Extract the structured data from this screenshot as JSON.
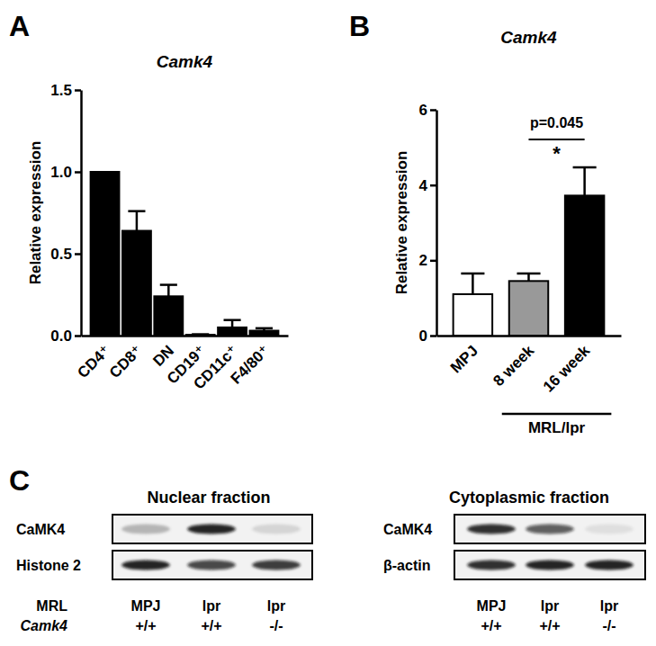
{
  "chart_data": [
    {
      "type": "bar",
      "panel": "A",
      "title": "Camk4",
      "y_label": "Relative expression",
      "categories": [
        "CD4⁺",
        "CD8⁺",
        "DN",
        "CD19⁺",
        "CD11c⁺",
        "F4/80⁺"
      ],
      "values": [
        1.0,
        0.64,
        0.24,
        0.005,
        0.05,
        0.03
      ],
      "errors": [
        null,
        0.12,
        0.07,
        0.003,
        0.045,
        0.015
      ],
      "color": "#000000",
      "ylim": [
        0,
        1.5
      ],
      "yticks": [
        {
          "value": 0,
          "label": "0.0"
        },
        0.5,
        {
          "value": 1,
          "label": "1.0"
        },
        1.5
      ]
    },
    {
      "type": "bar",
      "panel": "B",
      "title": "Camk4",
      "y_label": "Relative expression",
      "categories": [
        "MPJ",
        "8 week",
        "16 week"
      ],
      "values": [
        1.1,
        1.45,
        3.72
      ],
      "errors": [
        0.55,
        0.2,
        0.75
      ],
      "colors": [
        "#ffffff",
        "#999999",
        "#000000"
      ],
      "ylim": [
        0,
        6
      ],
      "yticks": [
        0,
        2,
        4,
        6
      ],
      "annotations": [
        {
          "text": "p=0.045",
          "between": [
            1,
            2
          ]
        },
        {
          "text": "*",
          "between": [
            1,
            2
          ]
        }
      ],
      "group_labels": [
        {
          "text": "MRL/lpr",
          "span": [
            1,
            2
          ]
        }
      ]
    }
  ],
  "western_blot": {
    "panel": "C",
    "row_labels": [
      "MRL",
      "Camk4"
    ],
    "blots": [
      {
        "title": "Nuclear fraction",
        "rows": [
          {
            "label": "CaMK4",
            "band_intensity": [
              0.25,
              0.9,
              0.12
            ]
          },
          {
            "label": "Histone 2",
            "band_intensity": [
              0.9,
              0.75,
              0.8
            ]
          }
        ],
        "lanes": {
          "MRL": [
            "MPJ",
            "lpr",
            "lpr"
          ],
          "Camk4": [
            "+/+",
            "+/+",
            "-/-"
          ]
        }
      },
      {
        "title": "Cytoplasmic fraction",
        "rows": [
          {
            "label": "CaMK4",
            "band_intensity": [
              0.85,
              0.65,
              0.08
            ]
          },
          {
            "label": "β-actin",
            "band_intensity": [
              0.85,
              0.9,
              0.9
            ]
          }
        ],
        "lanes": {
          "MRL": [
            "MPJ",
            "lpr",
            "lpr"
          ],
          "Camk4": [
            "+/+",
            "+/+",
            "-/-"
          ]
        }
      }
    ]
  }
}
